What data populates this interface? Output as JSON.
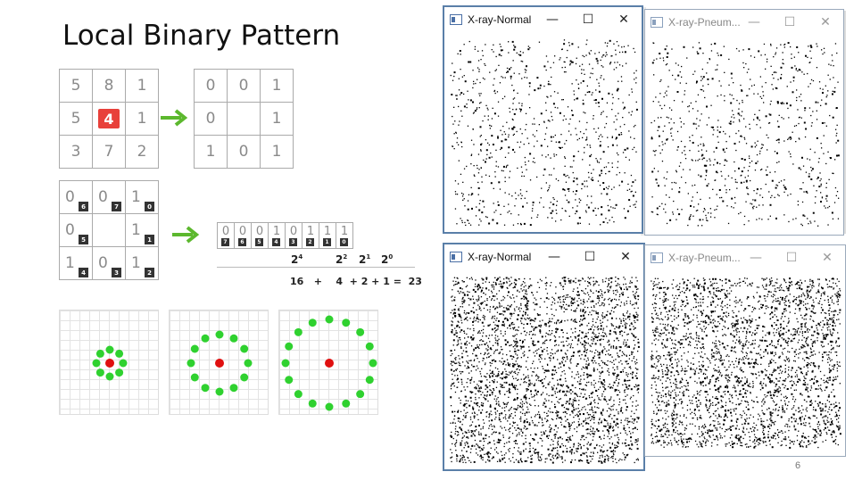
{
  "slide": {
    "title": "Local Binary Pattern",
    "page_number": "6"
  },
  "lbp": {
    "neighborhood": [
      "5",
      "8",
      "1",
      "5",
      "4",
      "1",
      "3",
      "7",
      "2"
    ],
    "thresholded": [
      "0",
      "0",
      "1",
      "0",
      "",
      "1",
      "1",
      "0",
      "1"
    ],
    "weighted_cells": [
      "0",
      "0",
      "1",
      "0",
      "",
      "1",
      "1",
      "0",
      "1"
    ],
    "weighted_indices": [
      "6",
      "7",
      "0",
      "5",
      "",
      "1",
      "4",
      "3",
      "2"
    ],
    "sequence_bits": [
      "0",
      "0",
      "0",
      "1",
      "0",
      "1",
      "1",
      "1"
    ],
    "sequence_indices": [
      "7",
      "6",
      "5",
      "4",
      "3",
      "2",
      "1",
      "0"
    ],
    "powers": [
      {
        "base": "2",
        "exp": "4"
      },
      {
        "base": "2",
        "exp": "2"
      },
      {
        "base": "2",
        "exp": "1"
      },
      {
        "base": "2",
        "exp": "0"
      }
    ],
    "sum_text": "16   +    4  + 2 + 1 =  23",
    "colors": {
      "center": "#e8403a",
      "arrow": "#5cb82e",
      "ring_points": "#2fd12f",
      "center_point": "#e01010"
    }
  },
  "windows": [
    {
      "title": "X-ray-Normal",
      "state": "active"
    },
    {
      "title": "X-ray-Pneum...",
      "state": "inactive"
    },
    {
      "title": "X-ray-Normal",
      "state": "active"
    },
    {
      "title": "X-ray-Pneum...",
      "state": "inactive"
    }
  ],
  "window_controls": {
    "minimize": "—",
    "maximize": "☐",
    "close": "✕"
  },
  "icons": [
    "app-window-icon",
    "minimize-icon",
    "maximize-icon",
    "close-icon",
    "right-arrow-icon"
  ]
}
